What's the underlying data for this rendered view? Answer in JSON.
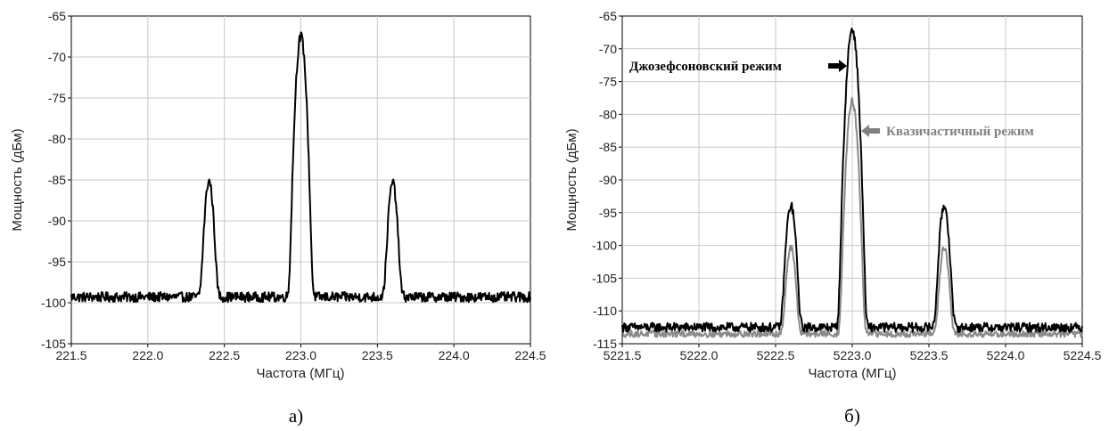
{
  "chart_data": [
    {
      "type": "line",
      "caption": "а)",
      "xlabel": "Частота (МГц)",
      "ylabel": "Мощность (дБм)",
      "xlim": [
        221.5,
        224.5
      ],
      "ylim": [
        -105,
        -65
      ],
      "xticks": [
        "221.5",
        "222.0",
        "222.5",
        "223.0",
        "223.5",
        "224.0",
        "224.5"
      ],
      "yticks": [
        "-65",
        "-70",
        "-75",
        "-80",
        "-85",
        "-90",
        "-95",
        "-100",
        "-105"
      ],
      "grid": true,
      "series": [
        {
          "color": "#000000",
          "baseline": -99.3,
          "noise": 0.6,
          "peaks": [
            {
              "x": 222.4,
              "y": -85.3
            },
            {
              "x": 223.0,
              "y": -67.5
            },
            {
              "x": 223.6,
              "y": -85.5
            }
          ]
        }
      ]
    },
    {
      "type": "line",
      "caption": "б)",
      "xlabel": "Частота (МГц)",
      "ylabel": "Мощность (дБм)",
      "xlim": [
        5221.5,
        5224.5
      ],
      "ylim": [
        -115,
        -65
      ],
      "xticks": [
        "5221.5",
        "5222.0",
        "5222.5",
        "5223.0",
        "5223.5",
        "5224.0",
        "5224.5"
      ],
      "yticks": [
        "-65",
        "-70",
        "-75",
        "-80",
        "-85",
        "-90",
        "-95",
        "-100",
        "-105",
        "-110",
        "-115"
      ],
      "grid": true,
      "annotations": [
        {
          "text": "Джозефсоновский режим",
          "color": "#000000",
          "arrow": "right"
        },
        {
          "text": "Квазичастичный режим",
          "color": "#808080",
          "arrow": "left"
        }
      ],
      "series": [
        {
          "color": "#000000",
          "baseline": -112.5,
          "noise": 0.7,
          "peaks": [
            {
              "x": 5222.6,
              "y": -94.0
            },
            {
              "x": 5223.0,
              "y": -67.0
            },
            {
              "x": 5223.6,
              "y": -94.0
            }
          ]
        },
        {
          "color": "#8a8a8a",
          "baseline": -113.5,
          "noise": 0.5,
          "peaks": [
            {
              "x": 5222.6,
              "y": -100.5
            },
            {
              "x": 5223.0,
              "y": -78.0
            },
            {
              "x": 5223.6,
              "y": -100.5
            }
          ]
        }
      ]
    }
  ]
}
